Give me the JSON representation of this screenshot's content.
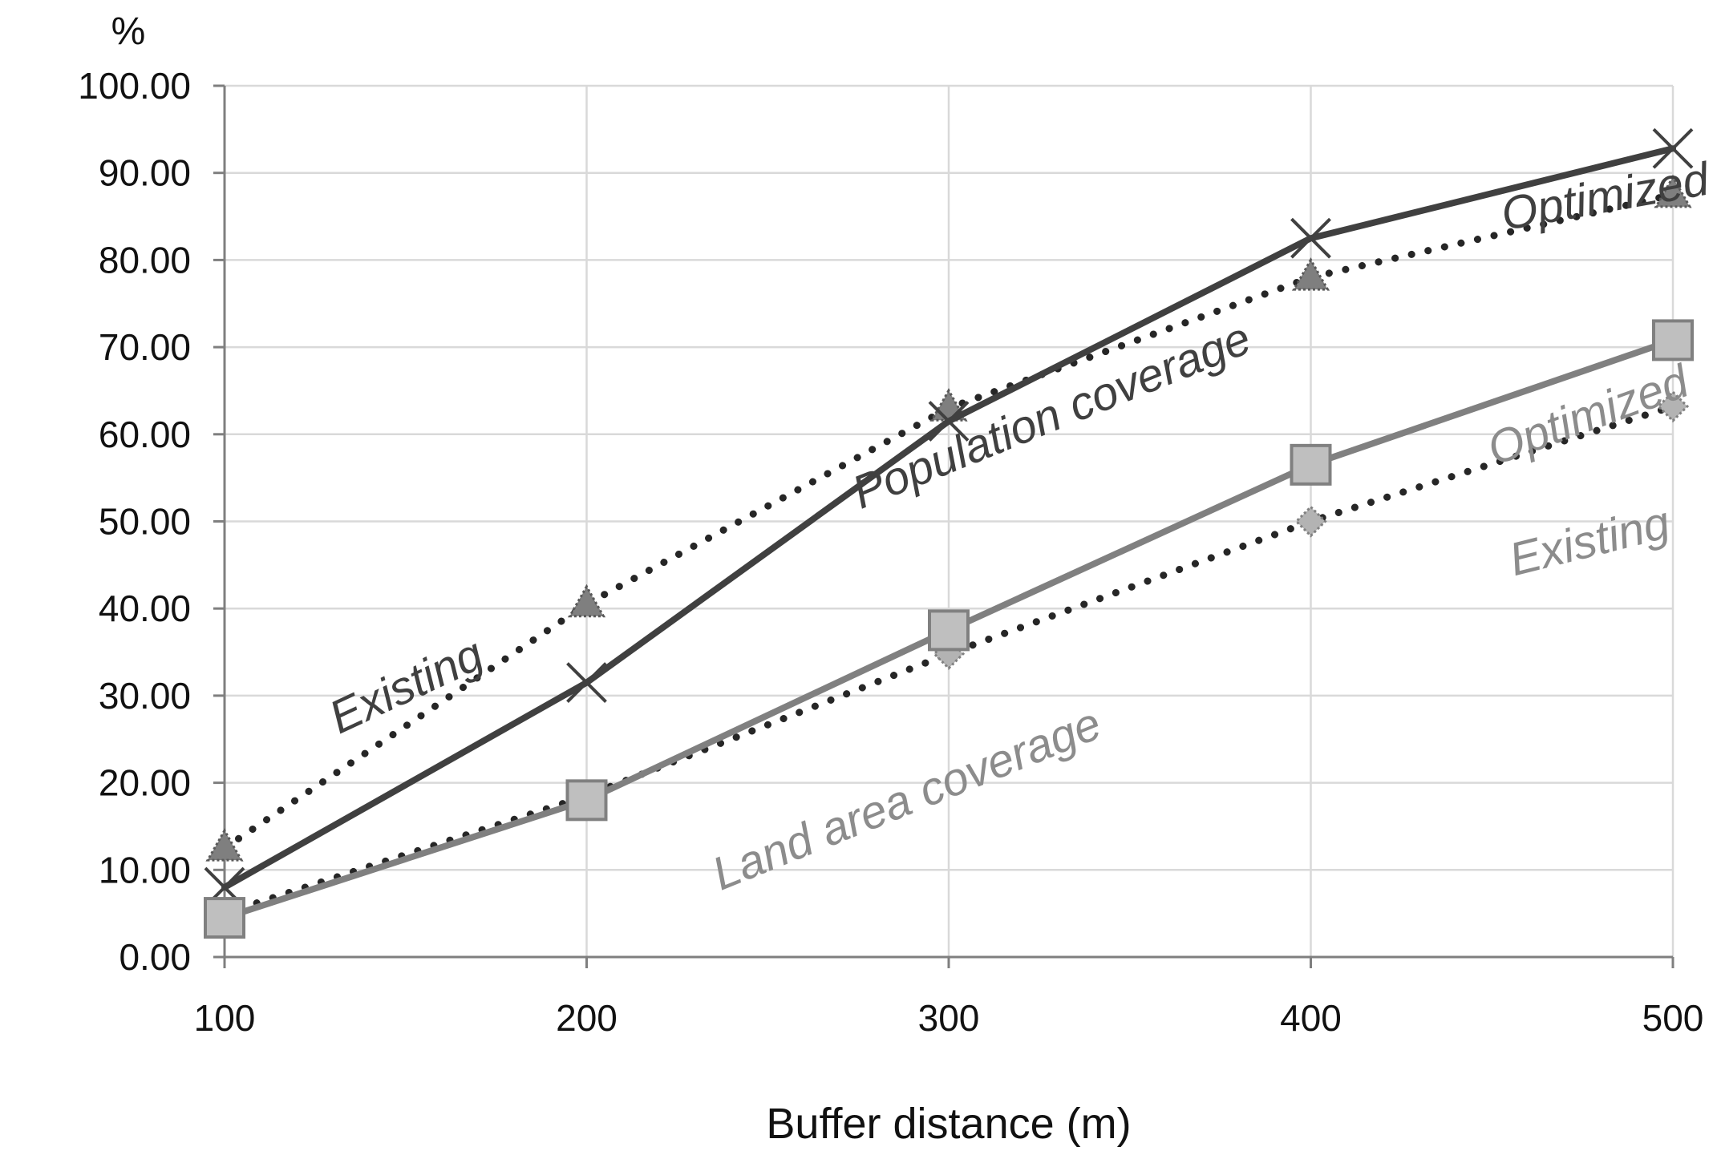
{
  "chart_data": {
    "type": "line",
    "title": "",
    "xlabel": "Buffer distance (m)",
    "ylabel": "%",
    "x": [
      100,
      200,
      300,
      400,
      500
    ],
    "x_tick_labels": [
      "100",
      "200",
      "300",
      "400",
      "500"
    ],
    "ylim": [
      0,
      100
    ],
    "y_tick_labels": [
      "0.00",
      "10.00",
      "20.00",
      "30.00",
      "40.00",
      "50.00",
      "60.00",
      "70.00",
      "80.00",
      "90.00",
      "100.00"
    ],
    "grid": true,
    "legend": "none",
    "series": [
      {
        "group": "Population coverage",
        "name": "Existing",
        "values": [
          12.5,
          40.5,
          63.0,
          78.0,
          87.5
        ],
        "color": "#595959",
        "line_style": "dotted",
        "marker": "triangle"
      },
      {
        "group": "Population coverage",
        "name": "Optimized",
        "values": [
          8.0,
          31.5,
          61.5,
          82.5,
          92.8
        ],
        "color": "#404040",
        "line_style": "solid",
        "marker": "x"
      },
      {
        "group": "Land area coverage",
        "name": "Existing",
        "values": [
          5.0,
          18.5,
          34.8,
          50.0,
          63.2
        ],
        "color": "#a6a6a6",
        "line_style": "dotted",
        "marker": "diamond"
      },
      {
        "group": "Land area coverage",
        "name": "Optimized",
        "values": [
          4.5,
          18.0,
          37.5,
          56.5,
          70.8
        ],
        "color": "#808080",
        "line_style": "solid",
        "marker": "square"
      }
    ],
    "annotations": [
      {
        "text": "Population coverage",
        "color": "#404040"
      },
      {
        "text": "Optimized",
        "color": "#404040"
      },
      {
        "text": "Existing",
        "color": "#404040"
      },
      {
        "text": "Optimized",
        "color": "#8c8c8c"
      },
      {
        "text": "Existing",
        "color": "#8c8c8c"
      },
      {
        "text": "Land area coverage",
        "color": "#8c8c8c"
      }
    ]
  }
}
